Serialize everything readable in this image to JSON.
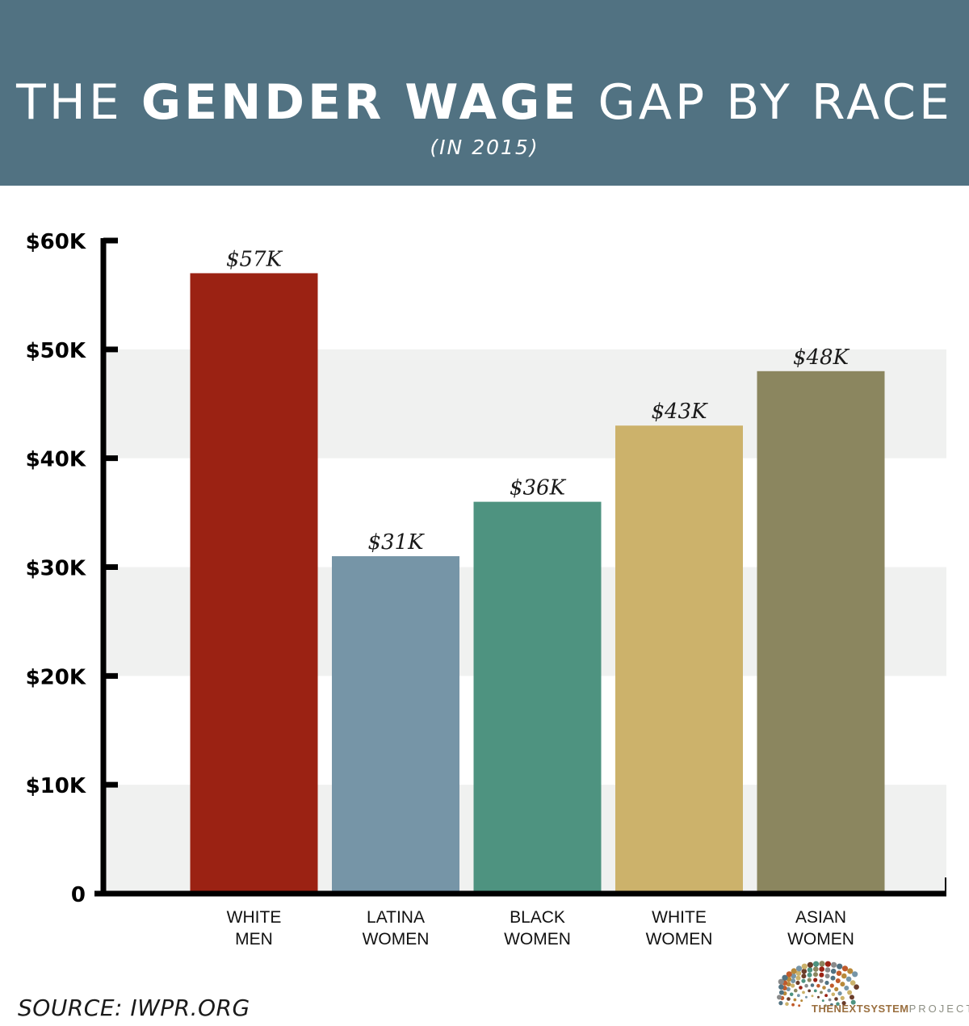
{
  "header": {
    "title_light_1": "THE",
    "title_bold": "GENDER WAGE",
    "title_light_2": "GAP BY RACE",
    "subtitle": "(IN 2015)"
  },
  "footer": {
    "source": "SOURCE: IWPR.ORG",
    "logo_text_strong": "THENEXTSYSTEM",
    "logo_text_light": "PROJECT",
    "logo_icon": "dot-burst-logo-icon"
  },
  "colors": {
    "header_bg": "#517282",
    "band": "#f0f1f0",
    "axis": "#000000"
  },
  "chart_data": {
    "type": "bar",
    "categories": [
      [
        "WHITE",
        "MEN"
      ],
      [
        "LATINA",
        "WOMEN"
      ],
      [
        "BLACK",
        "WOMEN"
      ],
      [
        "WHITE",
        "WOMEN"
      ],
      [
        "ASIAN",
        "WOMEN"
      ]
    ],
    "values": [
      57,
      31,
      36,
      43,
      48
    ],
    "data_labels": [
      "$57K",
      "$31K",
      "$36K",
      "$43K",
      "$48K"
    ],
    "bar_colors": [
      "#9b2213",
      "#7695a7",
      "#4e9380",
      "#ccb26b",
      "#8b865f"
    ],
    "ylim": [
      0,
      60
    ],
    "yticks": [
      0,
      10,
      20,
      30,
      40,
      50,
      60
    ],
    "ytick_labels": [
      "0",
      "$10K",
      "$20K",
      "$30K",
      "$40K",
      "$50K",
      "$60K"
    ],
    "grid": "alternating horizontal bands",
    "legend": "none"
  }
}
